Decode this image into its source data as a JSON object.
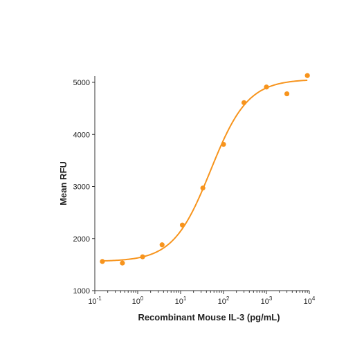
{
  "chart_data": {
    "type": "scatter",
    "title": "",
    "xlabel": "Recombinant Mouse IL-3 (pg/mL)",
    "ylabel": "Mean RFU",
    "x_scale": "log",
    "xlim": [
      0.1,
      10000
    ],
    "ylim": [
      1000,
      5200
    ],
    "x_ticks": [
      {
        "value": 0.1,
        "base": "10",
        "exp": "-1"
      },
      {
        "value": 1,
        "base": "10",
        "exp": "0"
      },
      {
        "value": 10,
        "base": "10",
        "exp": "1"
      },
      {
        "value": 100,
        "base": "10",
        "exp": "2"
      },
      {
        "value": 1000,
        "base": "10",
        "exp": "3"
      },
      {
        "value": 10000,
        "base": "10",
        "exp": "4"
      }
    ],
    "y_ticks": [
      {
        "value": 1000,
        "label": "1000"
      },
      {
        "value": 2000,
        "label": "2000"
      },
      {
        "value": 3000,
        "label": "3000"
      },
      {
        "value": 4000,
        "label": "4000"
      },
      {
        "value": 5000,
        "label": "5000"
      }
    ],
    "grid": false,
    "color": "#F7941D",
    "points": [
      {
        "x": 0.15,
        "y": 1560
      },
      {
        "x": 0.44,
        "y": 1530
      },
      {
        "x": 1.3,
        "y": 1650
      },
      {
        "x": 3.7,
        "y": 1880
      },
      {
        "x": 11,
        "y": 2260
      },
      {
        "x": 33,
        "y": 2970
      },
      {
        "x": 100,
        "y": 3810
      },
      {
        "x": 300,
        "y": 4610
      },
      {
        "x": 1000,
        "y": 4910
      },
      {
        "x": 3000,
        "y": 4780
      },
      {
        "x": 9000,
        "y": 5130
      }
    ],
    "fit": {
      "model": "4PL",
      "bottom": 1560,
      "top": 5060,
      "ec50": 50,
      "hill": 1
    }
  }
}
